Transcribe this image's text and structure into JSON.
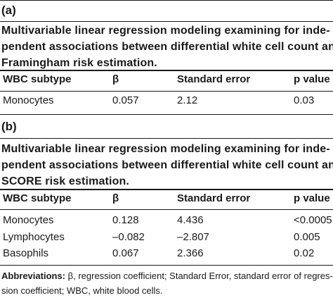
{
  "panel_a": {
    "label": "(a)",
    "caption_lines": [
      "Multivariable linear regression modeling examining for inde-",
      "pendent associations between differential white cell count and",
      "Framingham risk estimation."
    ],
    "headers": [
      "WBC subtype",
      "β",
      "Standard error",
      "p value"
    ],
    "rows": [
      [
        "Monocytes",
        "0.057",
        "2.12",
        "0.03"
      ]
    ]
  },
  "panel_b": {
    "label": "(b)",
    "caption_lines": [
      "Multivariable linear regression modeling examining for inde-",
      "pendent associations between differential white cell count and",
      "SCORE risk estimation."
    ],
    "headers": [
      "WBC subtype",
      "β",
      "Standard error",
      "p value"
    ],
    "rows": [
      [
        "Monocytes",
        "0.128",
        "4.436",
        "<0.0005"
      ],
      [
        "Lymphocytes",
        "–0.082",
        "–2.807",
        "0.005"
      ],
      [
        "Basophils",
        "0.067",
        "2.366",
        "0.02"
      ]
    ]
  },
  "footnote": {
    "label": "Abbreviations:",
    "text_line1": " β, regression coefficient; Standard Error, standard error of regres-",
    "text_line2": "sion coefficient; WBC, white blood cells."
  }
}
